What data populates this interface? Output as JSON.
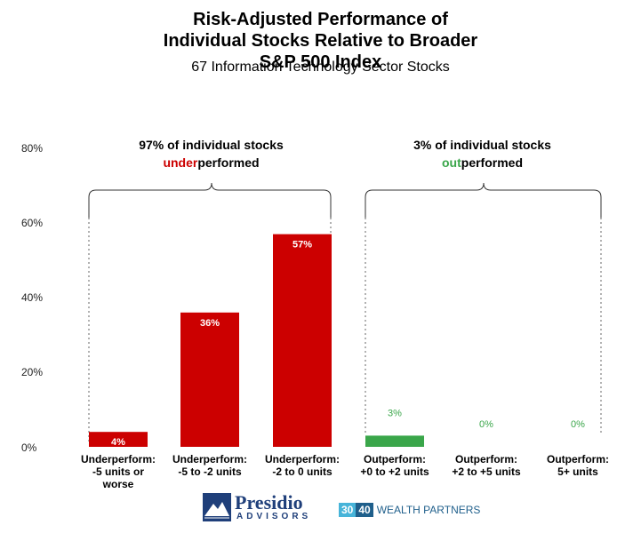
{
  "chart_data": {
    "type": "bar",
    "title": "Risk-Adjusted Performance of Individual Stocks Relative to Broader S&P 500 Index",
    "subtitle": "67 Information Technology Sector Stocks",
    "categories": [
      [
        "Underperform:",
        "-5 units or",
        "worse"
      ],
      [
        "Underperform:",
        "-5 to -2 units"
      ],
      [
        "Underperform:",
        "-2 to 0 units"
      ],
      [
        "Outperform:",
        "+0 to +2 units"
      ],
      [
        "Outperform:",
        "+2 to +5 units"
      ],
      [
        "Outperform:",
        "5+ units"
      ]
    ],
    "values": [
      4,
      36,
      57,
      3,
      0,
      0
    ],
    "data_labels": [
      "4%",
      "36%",
      "57%",
      "3%",
      "0%",
      "0%"
    ],
    "colors": [
      "#cc0000",
      "#cc0000",
      "#cc0000",
      "#3aa64a",
      "#3aa64a",
      "#3aa64a"
    ],
    "label_colors": [
      "#ffffff",
      "#ffffff",
      "#ffffff",
      "#3aa64a",
      "#3aa64a",
      "#3aa64a"
    ],
    "yticks": [
      "0%",
      "20%",
      "40%",
      "60%",
      "80%"
    ],
    "ylim": [
      0,
      80
    ],
    "grid": false,
    "annotations": {
      "left_line1": "97% of individual stocks",
      "left_highlight": "under",
      "left_rest": "performed",
      "left_color": "#cc0000",
      "right_line1": "3% of individual stocks",
      "right_highlight": "out",
      "right_rest": "performed",
      "right_color": "#3aa64a"
    }
  },
  "logos": {
    "presidio_name": "Presidio",
    "presidio_sub": "ADVISORS",
    "partner_num1": "30",
    "partner_num2": "40",
    "partner_text": "WEALTH PARTNERS"
  }
}
